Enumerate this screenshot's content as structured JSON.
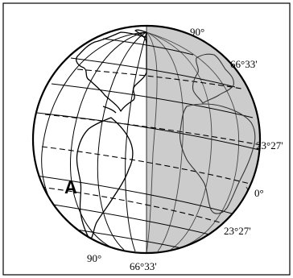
{
  "figure": {
    "labels": {
      "north_pole": "90°",
      "south_pole": "90°",
      "arctic_circle": "66°33'",
      "antarctic_circle": "66°33'",
      "tropic_cancer": "23°27'",
      "tropic_capricorn": "23°27'",
      "equator": "0°",
      "point": "A"
    },
    "colors": {
      "night_side": "#cccccc",
      "day_side": "#ffffff",
      "lines": "#000000"
    }
  }
}
